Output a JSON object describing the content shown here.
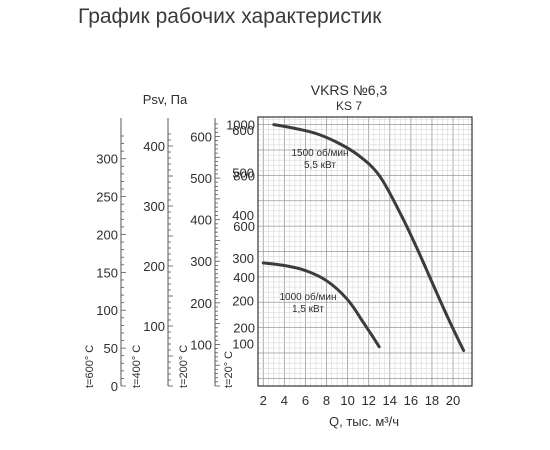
{
  "page": {
    "title": "График рабочих характеристик"
  },
  "chart_data": {
    "type": "line",
    "title": "VKRS №6,3",
    "subtitle": "KS 7",
    "xlabel": "Q, тыс. м³/ч",
    "ylabel": "Psv, Па",
    "xlim": [
      1.5,
      21.8
    ],
    "ylim": [
      -30,
      1030
    ],
    "grid": true,
    "x_ticks": [
      2,
      4,
      6,
      8,
      10,
      12,
      14,
      16,
      18,
      20
    ],
    "y_ticks": [
      200,
      400,
      600,
      800,
      1000
    ],
    "series": [
      {
        "name": "1500 об/мин 5,5 кВт",
        "label_lines": [
          "1500 об/мин",
          "5,5 кВт"
        ],
        "x": [
          3.0,
          5.0,
          7.0,
          9.0,
          11.0,
          13.0,
          15.0,
          16.5,
          18.0,
          19.5,
          21.0
        ],
        "y": [
          1000,
          985,
          965,
          930,
          880,
          800,
          650,
          520,
          380,
          240,
          110
        ]
      },
      {
        "name": "1000 об/мин 1,5 кВт",
        "label_lines": [
          "1000 об/мин",
          "1,5 кВт"
        ],
        "x": [
          2.0,
          4.0,
          6.0,
          8.0,
          10.0,
          11.5,
          13.0
        ],
        "y": [
          455,
          445,
          425,
          385,
          310,
          220,
          125
        ]
      }
    ],
    "temperature_scales": [
      {
        "label": "t=600° C",
        "max": 330,
        "ticks": [
          0,
          50,
          100,
          150,
          200,
          250,
          300
        ]
      },
      {
        "label": "t=400° C",
        "max": 420,
        "ticks": [
          100,
          200,
          300,
          400
        ]
      },
      {
        "label": "t=200° C",
        "max": 630,
        "ticks": [
          100,
          200,
          300,
          400,
          500,
          600
        ]
      },
      {
        "label": "t=20° C",
        "max": 630,
        "ticks": [
          100,
          200,
          300,
          400,
          500,
          600
        ]
      }
    ]
  }
}
